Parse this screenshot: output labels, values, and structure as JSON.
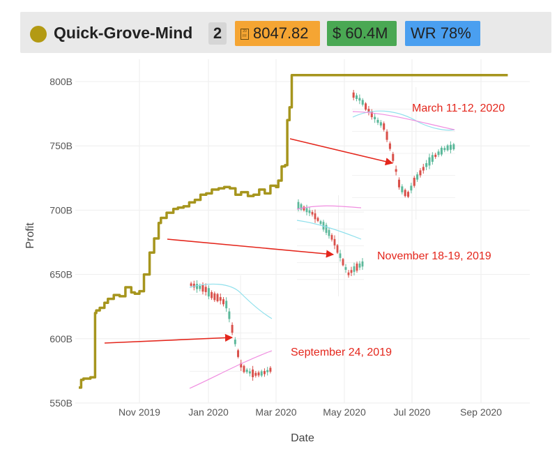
{
  "header": {
    "name": "Quick-Grove-Mind",
    "rank": "2",
    "price": "8047.82",
    "volume": "$ 60.4M",
    "win_rate": "WR 78%",
    "colors": {
      "dot": "#b39a13",
      "price_badge": "#f5a533",
      "volume_badge": "#4aa853",
      "wr_badge": "#4a9ff0"
    },
    "icons": {
      "price": "calendar-icon"
    }
  },
  "chart_data": {
    "type": "line",
    "title": "",
    "xlabel": "Date",
    "ylabel": "Profit",
    "x_ticks": [
      "Nov 2019",
      "Jan 2020",
      "Mar 2020",
      "May 2020",
      "Jul 2020",
      "Sep 2020"
    ],
    "y_ticks": [
      "550B",
      "600B",
      "650B",
      "700B",
      "750B",
      "800B"
    ],
    "ylim": [
      550,
      810
    ],
    "xlim": [
      "2019-09-07",
      "2020-10-01"
    ],
    "grid": true,
    "line_color": "#a6951d",
    "series": [
      {
        "x": [
          "2019-09-10",
          "2019-09-12",
          "2019-09-14",
          "2019-09-20",
          "2019-09-24",
          "2019-09-25",
          "2019-09-28",
          "2019-10-02",
          "2019-10-05",
          "2019-10-10",
          "2019-10-15",
          "2019-10-20",
          "2019-10-25",
          "2019-10-28",
          "2019-11-01",
          "2019-11-05",
          "2019-11-10",
          "2019-11-14",
          "2019-11-18",
          "2019-11-20",
          "2019-11-25",
          "2019-12-01",
          "2019-12-05",
          "2019-12-10",
          "2019-12-15",
          "2019-12-20",
          "2019-12-25",
          "2019-12-30",
          "2020-01-04",
          "2020-01-10",
          "2020-01-15",
          "2020-01-20",
          "2020-01-25",
          "2020-01-30",
          "2020-02-05",
          "2020-02-10",
          "2020-02-15",
          "2020-02-20",
          "2020-02-25",
          "2020-03-01",
          "2020-03-03",
          "2020-03-06",
          "2020-03-09",
          "2020-03-11",
          "2020-03-13",
          "2020-03-15",
          "2020-03-20",
          "2020-04-01",
          "2020-05-01",
          "2020-06-01",
          "2020-07-01",
          "2020-08-01",
          "2020-09-01",
          "2020-09-25"
        ],
        "y": [
          562,
          568,
          569,
          570,
          620,
          622,
          624,
          628,
          631,
          634,
          633,
          640,
          636,
          635,
          637,
          650,
          667,
          678,
          690,
          694,
          698,
          701,
          702,
          703,
          706,
          708,
          712,
          713,
          716,
          717,
          718,
          717,
          712,
          714,
          711,
          712,
          716,
          713,
          719,
          718,
          723,
          734,
          735,
          770,
          780,
          805,
          805,
          805,
          805,
          805,
          805,
          805,
          805,
          805
        ]
      }
    ],
    "annotations": [
      {
        "text": "March 11-12, 2020"
      },
      {
        "text": "November 18-19, 2019"
      },
      {
        "text": "September 24, 2019"
      }
    ]
  }
}
